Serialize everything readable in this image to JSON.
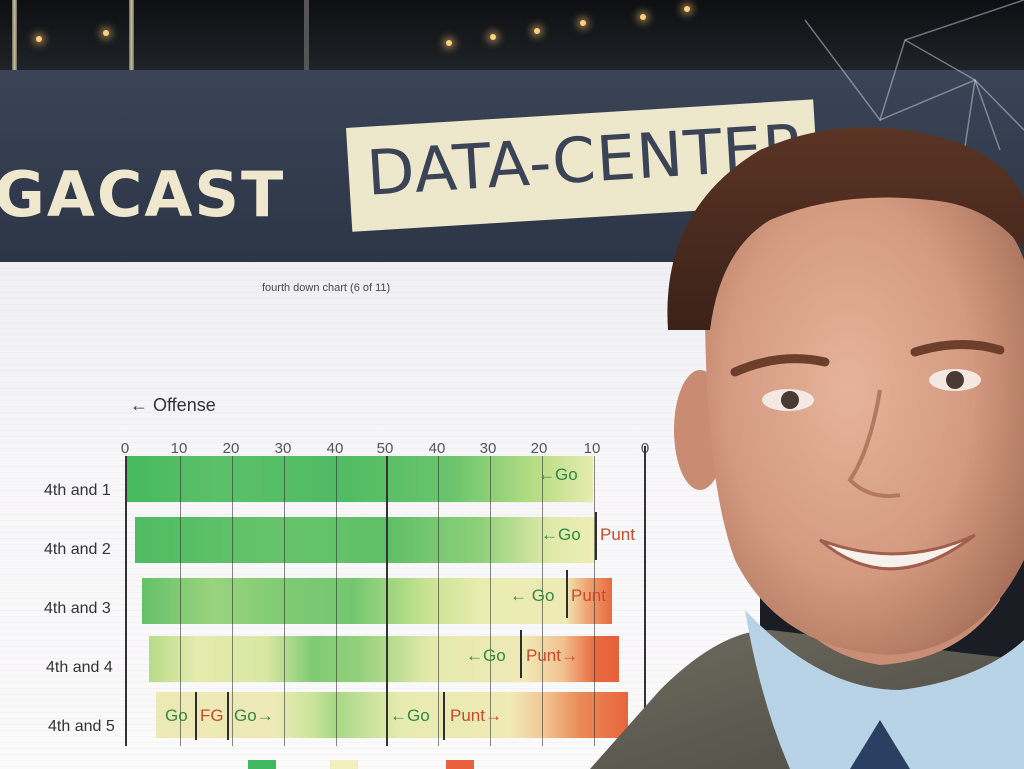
{
  "banner": {
    "brand_left": "GACAST",
    "brand_box": "DATA-CENTER"
  },
  "chart": {
    "title": "fourth down chart (6 of 11)",
    "offense_label": "← Offense",
    "ticks": [
      "0",
      "10",
      "20",
      "30",
      "40",
      "50",
      "40",
      "30",
      "20",
      "10",
      "0"
    ],
    "rows": [
      {
        "label": "4th and 1",
        "zones": [
          {
            "text": "←Go",
            "kind": "go"
          }
        ]
      },
      {
        "label": "4th and 2",
        "zones": [
          {
            "text": "←Go",
            "kind": "go"
          },
          {
            "text": "Punt",
            "kind": "punt"
          }
        ]
      },
      {
        "label": "4th and 3",
        "zones": [
          {
            "text": "← Go",
            "kind": "go"
          },
          {
            "text": "Punt",
            "kind": "punt"
          }
        ]
      },
      {
        "label": "4th and 4",
        "zones": [
          {
            "text": "←Go",
            "kind": "go"
          },
          {
            "text": "Punt→",
            "kind": "punt"
          }
        ]
      },
      {
        "label": "4th and 5",
        "zones": [
          {
            "text": "Go",
            "kind": "go"
          },
          {
            "text": "FG",
            "kind": "fg"
          },
          {
            "text": "Go→",
            "kind": "go"
          },
          {
            "text": "←Go",
            "kind": "go"
          },
          {
            "text": "Punt→",
            "kind": "punt"
          }
        ]
      }
    ]
  },
  "colors": {
    "go": "#3fb860",
    "mid": "#f2efbf",
    "punt": "#e8603c"
  }
}
